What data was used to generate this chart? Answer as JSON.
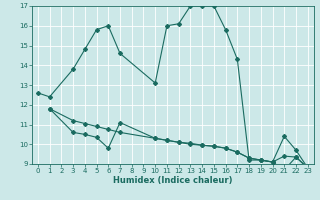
{
  "xlabel": "Humidex (Indice chaleur)",
  "background_color": "#cce8e8",
  "grid_color": "#ffffff",
  "line_color": "#1a6b60",
  "xlim": [
    -0.5,
    23.5
  ],
  "ylim": [
    9,
    17
  ],
  "xticks": [
    0,
    1,
    2,
    3,
    4,
    5,
    6,
    7,
    8,
    9,
    10,
    11,
    12,
    13,
    14,
    15,
    16,
    17,
    18,
    19,
    20,
    21,
    22,
    23
  ],
  "yticks": [
    9,
    10,
    11,
    12,
    13,
    14,
    15,
    16,
    17
  ],
  "curve1_x": [
    0,
    1,
    3,
    4,
    5,
    6,
    7,
    10,
    11,
    12,
    13,
    14,
    15,
    16,
    17,
    18,
    19,
    20,
    21,
    22,
    23
  ],
  "curve1_y": [
    12.6,
    12.4,
    13.8,
    14.8,
    15.8,
    16.0,
    14.6,
    13.1,
    16.0,
    16.1,
    17.0,
    17.0,
    17.0,
    15.8,
    14.3,
    9.2,
    9.2,
    9.1,
    10.4,
    9.7,
    8.8
  ],
  "curve2_x": [
    1,
    3,
    4,
    5,
    6,
    7,
    10,
    11,
    12,
    13,
    14,
    15,
    16,
    17,
    18,
    19,
    20,
    21,
    22,
    23
  ],
  "curve2_y": [
    11.8,
    10.6,
    10.5,
    10.35,
    9.8,
    11.1,
    10.3,
    10.2,
    10.1,
    10.05,
    9.95,
    9.9,
    9.8,
    9.6,
    9.3,
    9.2,
    9.1,
    8.7,
    9.35,
    8.8
  ],
  "curve3_x": [
    1,
    3,
    4,
    5,
    6,
    7,
    10,
    11,
    12,
    13,
    14,
    15,
    16,
    17,
    18,
    19,
    20,
    21,
    22,
    23
  ],
  "curve3_y": [
    11.8,
    11.2,
    11.05,
    10.9,
    10.75,
    10.6,
    10.3,
    10.2,
    10.1,
    10.0,
    9.95,
    9.9,
    9.8,
    9.6,
    9.3,
    9.2,
    9.1,
    9.4,
    9.35,
    8.8
  ]
}
